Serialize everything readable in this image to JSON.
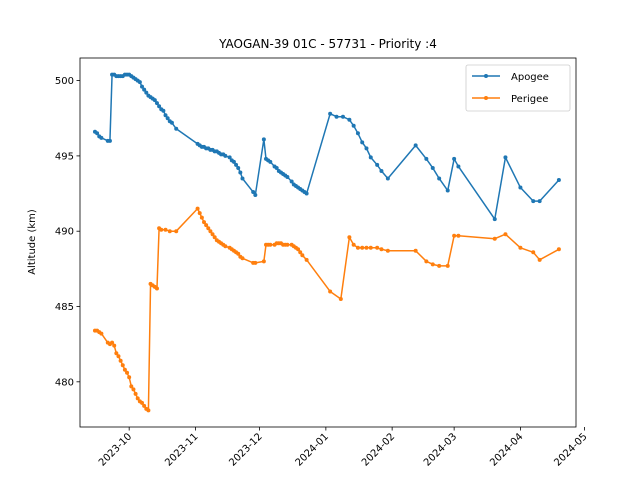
{
  "chart_data": {
    "type": "line",
    "title": "YAOGAN-39 01C - 57731 - Priority :4",
    "xlabel": "",
    "ylabel": "Altitude (km)",
    "xlim": [
      "2023-09-08",
      "2024-04-27"
    ],
    "ylim": [
      477,
      501.5
    ],
    "y_ticks": [
      480,
      485,
      490,
      495,
      500
    ],
    "x_ticks": [
      {
        "date": "2023-10-01",
        "label": "2023-10"
      },
      {
        "date": "2023-11-01",
        "label": "2023-11"
      },
      {
        "date": "2023-12-01",
        "label": "2023-12"
      },
      {
        "date": "2024-01-01",
        "label": "2024-01"
      },
      {
        "date": "2024-02-01",
        "label": "2024-02"
      },
      {
        "date": "2024-03-01",
        "label": "2024-03"
      },
      {
        "date": "2024-04-01",
        "label": "2024-04"
      },
      {
        "date": "2024-05-01",
        "label": "2024-05"
      }
    ],
    "grid": false,
    "legend": "top-right",
    "series": [
      {
        "name": "Apogee",
        "color": "#1f77b4",
        "points": [
          [
            "2023-09-15",
            496.6
          ],
          [
            "2023-09-16",
            496.5
          ],
          [
            "2023-09-17",
            496.3
          ],
          [
            "2023-09-18",
            496.2
          ],
          [
            "2023-09-21",
            496.0
          ],
          [
            "2023-09-22",
            496.0
          ],
          [
            "2023-09-23",
            500.4
          ],
          [
            "2023-09-24",
            500.4
          ],
          [
            "2023-09-25",
            500.3
          ],
          [
            "2023-09-26",
            500.3
          ],
          [
            "2023-09-27",
            500.3
          ],
          [
            "2023-09-28",
            500.3
          ],
          [
            "2023-09-29",
            500.4
          ],
          [
            "2023-09-30",
            500.4
          ],
          [
            "2023-10-01",
            500.4
          ],
          [
            "2023-10-02",
            500.3
          ],
          [
            "2023-10-03",
            500.2
          ],
          [
            "2023-10-04",
            500.1
          ],
          [
            "2023-10-05",
            500.0
          ],
          [
            "2023-10-06",
            499.9
          ],
          [
            "2023-10-07",
            499.6
          ],
          [
            "2023-10-08",
            499.4
          ],
          [
            "2023-10-09",
            499.2
          ],
          [
            "2023-10-10",
            499.0
          ],
          [
            "2023-10-11",
            498.9
          ],
          [
            "2023-10-12",
            498.8
          ],
          [
            "2023-10-13",
            498.7
          ],
          [
            "2023-10-14",
            498.5
          ],
          [
            "2023-10-15",
            498.3
          ],
          [
            "2023-10-16",
            498.1
          ],
          [
            "2023-10-17",
            498.0
          ],
          [
            "2023-10-18",
            497.7
          ],
          [
            "2023-10-19",
            497.5
          ],
          [
            "2023-10-20",
            497.3
          ],
          [
            "2023-10-21",
            497.2
          ],
          [
            "2023-10-23",
            496.8
          ],
          [
            "2023-11-02",
            495.8
          ],
          [
            "2023-11-03",
            495.7
          ],
          [
            "2023-11-04",
            495.6
          ],
          [
            "2023-11-05",
            495.6
          ],
          [
            "2023-11-06",
            495.5
          ],
          [
            "2023-11-07",
            495.5
          ],
          [
            "2023-11-08",
            495.4
          ],
          [
            "2023-11-09",
            495.4
          ],
          [
            "2023-11-10",
            495.3
          ],
          [
            "2023-11-11",
            495.3
          ],
          [
            "2023-11-12",
            495.2
          ],
          [
            "2023-11-13",
            495.1
          ],
          [
            "2023-11-14",
            495.1
          ],
          [
            "2023-11-15",
            495.0
          ],
          [
            "2023-11-17",
            494.9
          ],
          [
            "2023-11-18",
            494.7
          ],
          [
            "2023-11-19",
            494.6
          ],
          [
            "2023-11-20",
            494.4
          ],
          [
            "2023-11-21",
            494.2
          ],
          [
            "2023-11-22",
            493.9
          ],
          [
            "2023-11-23",
            493.5
          ],
          [
            "2023-11-28",
            492.6
          ],
          [
            "2023-11-29",
            492.4
          ],
          [
            "2023-12-03",
            496.1
          ],
          [
            "2023-12-04",
            494.8
          ],
          [
            "2023-12-05",
            494.7
          ],
          [
            "2023-12-06",
            494.6
          ],
          [
            "2023-12-08",
            494.3
          ],
          [
            "2023-12-09",
            494.2
          ],
          [
            "2023-12-10",
            494.0
          ],
          [
            "2023-12-11",
            493.9
          ],
          [
            "2023-12-12",
            493.8
          ],
          [
            "2023-12-13",
            493.7
          ],
          [
            "2023-12-14",
            493.6
          ],
          [
            "2023-12-16",
            493.3
          ],
          [
            "2023-12-17",
            493.1
          ],
          [
            "2023-12-18",
            493.0
          ],
          [
            "2023-12-19",
            492.9
          ],
          [
            "2023-12-20",
            492.8
          ],
          [
            "2023-12-21",
            492.7
          ],
          [
            "2023-12-22",
            492.6
          ],
          [
            "2023-12-23",
            492.5
          ],
          [
            "2024-01-03",
            497.8
          ],
          [
            "2024-01-06",
            497.6
          ],
          [
            "2024-01-09",
            497.6
          ],
          [
            "2024-01-12",
            497.4
          ],
          [
            "2024-01-14",
            497.0
          ],
          [
            "2024-01-16",
            496.5
          ],
          [
            "2024-01-18",
            495.9
          ],
          [
            "2024-01-20",
            495.5
          ],
          [
            "2024-01-22",
            494.9
          ],
          [
            "2024-01-25",
            494.4
          ],
          [
            "2024-01-27",
            494.0
          ],
          [
            "2024-01-30",
            493.5
          ],
          [
            "2024-02-12",
            495.7
          ],
          [
            "2024-02-17",
            494.8
          ],
          [
            "2024-02-20",
            494.2
          ],
          [
            "2024-02-23",
            493.5
          ],
          [
            "2024-02-27",
            492.7
          ],
          [
            "2024-03-01",
            494.8
          ],
          [
            "2024-03-03",
            494.3
          ],
          [
            "2024-03-20",
            490.8
          ],
          [
            "2024-03-25",
            494.9
          ],
          [
            "2024-04-01",
            492.9
          ],
          [
            "2024-04-07",
            492.0
          ],
          [
            "2024-04-10",
            492.0
          ],
          [
            "2024-04-19",
            493.4
          ]
        ]
      },
      {
        "name": "Perigee",
        "color": "#ff7f0e",
        "points": [
          [
            "2023-09-15",
            483.4
          ],
          [
            "2023-09-16",
            483.4
          ],
          [
            "2023-09-17",
            483.3
          ],
          [
            "2023-09-18",
            483.2
          ],
          [
            "2023-09-21",
            482.6
          ],
          [
            "2023-09-22",
            482.5
          ],
          [
            "2023-09-23",
            482.6
          ],
          [
            "2023-09-24",
            482.4
          ],
          [
            "2023-09-25",
            481.9
          ],
          [
            "2023-09-26",
            481.7
          ],
          [
            "2023-09-27",
            481.4
          ],
          [
            "2023-09-28",
            481.1
          ],
          [
            "2023-09-29",
            480.8
          ],
          [
            "2023-09-30",
            480.6
          ],
          [
            "2023-10-01",
            480.3
          ],
          [
            "2023-10-02",
            479.7
          ],
          [
            "2023-10-03",
            479.5
          ],
          [
            "2023-10-04",
            479.2
          ],
          [
            "2023-10-05",
            478.9
          ],
          [
            "2023-10-06",
            478.7
          ],
          [
            "2023-10-07",
            478.6
          ],
          [
            "2023-10-08",
            478.4
          ],
          [
            "2023-10-09",
            478.2
          ],
          [
            "2023-10-10",
            478.1
          ],
          [
            "2023-10-11",
            486.5
          ],
          [
            "2023-10-12",
            486.4
          ],
          [
            "2023-10-13",
            486.3
          ],
          [
            "2023-10-14",
            486.2
          ],
          [
            "2023-10-15",
            490.2
          ],
          [
            "2023-10-16",
            490.1
          ],
          [
            "2023-10-18",
            490.1
          ],
          [
            "2023-10-20",
            490.0
          ],
          [
            "2023-10-23",
            490.0
          ],
          [
            "2023-11-02",
            491.5
          ],
          [
            "2023-11-03",
            491.2
          ],
          [
            "2023-11-04",
            490.9
          ],
          [
            "2023-11-05",
            490.6
          ],
          [
            "2023-11-06",
            490.4
          ],
          [
            "2023-11-07",
            490.2
          ],
          [
            "2023-11-08",
            490.0
          ],
          [
            "2023-11-09",
            489.8
          ],
          [
            "2023-11-10",
            489.6
          ],
          [
            "2023-11-11",
            489.4
          ],
          [
            "2023-11-12",
            489.3
          ],
          [
            "2023-11-13",
            489.2
          ],
          [
            "2023-11-14",
            489.1
          ],
          [
            "2023-11-15",
            489.0
          ],
          [
            "2023-11-17",
            488.9
          ],
          [
            "2023-11-18",
            488.8
          ],
          [
            "2023-11-19",
            488.7
          ],
          [
            "2023-11-20",
            488.6
          ],
          [
            "2023-11-21",
            488.5
          ],
          [
            "2023-11-22",
            488.3
          ],
          [
            "2023-11-23",
            488.2
          ],
          [
            "2023-11-28",
            487.9
          ],
          [
            "2023-11-29",
            487.9
          ],
          [
            "2023-12-03",
            488.0
          ],
          [
            "2023-12-04",
            489.1
          ],
          [
            "2023-12-05",
            489.1
          ],
          [
            "2023-12-06",
            489.1
          ],
          [
            "2023-12-08",
            489.1
          ],
          [
            "2023-12-09",
            489.2
          ],
          [
            "2023-12-10",
            489.2
          ],
          [
            "2023-12-11",
            489.2
          ],
          [
            "2023-12-12",
            489.1
          ],
          [
            "2023-12-13",
            489.1
          ],
          [
            "2023-12-14",
            489.1
          ],
          [
            "2023-12-16",
            489.1
          ],
          [
            "2023-12-17",
            489.0
          ],
          [
            "2023-12-18",
            488.9
          ],
          [
            "2023-12-19",
            488.8
          ],
          [
            "2023-12-20",
            488.6
          ],
          [
            "2023-12-21",
            488.4
          ],
          [
            "2023-12-23",
            488.1
          ],
          [
            "2024-01-03",
            486.0
          ],
          [
            "2024-01-08",
            485.5
          ],
          [
            "2024-01-12",
            489.6
          ],
          [
            "2024-01-14",
            489.1
          ],
          [
            "2024-01-16",
            488.9
          ],
          [
            "2024-01-18",
            488.9
          ],
          [
            "2024-01-20",
            488.9
          ],
          [
            "2024-01-22",
            488.9
          ],
          [
            "2024-01-25",
            488.9
          ],
          [
            "2024-01-27",
            488.8
          ],
          [
            "2024-01-30",
            488.7
          ],
          [
            "2024-02-12",
            488.7
          ],
          [
            "2024-02-17",
            488.0
          ],
          [
            "2024-02-20",
            487.8
          ],
          [
            "2024-02-23",
            487.7
          ],
          [
            "2024-02-27",
            487.7
          ],
          [
            "2024-03-01",
            489.7
          ],
          [
            "2024-03-03",
            489.7
          ],
          [
            "2024-03-20",
            489.5
          ],
          [
            "2024-03-25",
            489.8
          ],
          [
            "2024-04-01",
            488.9
          ],
          [
            "2024-04-07",
            488.6
          ],
          [
            "2024-04-10",
            488.1
          ],
          [
            "2024-04-19",
            488.8
          ]
        ]
      }
    ]
  }
}
